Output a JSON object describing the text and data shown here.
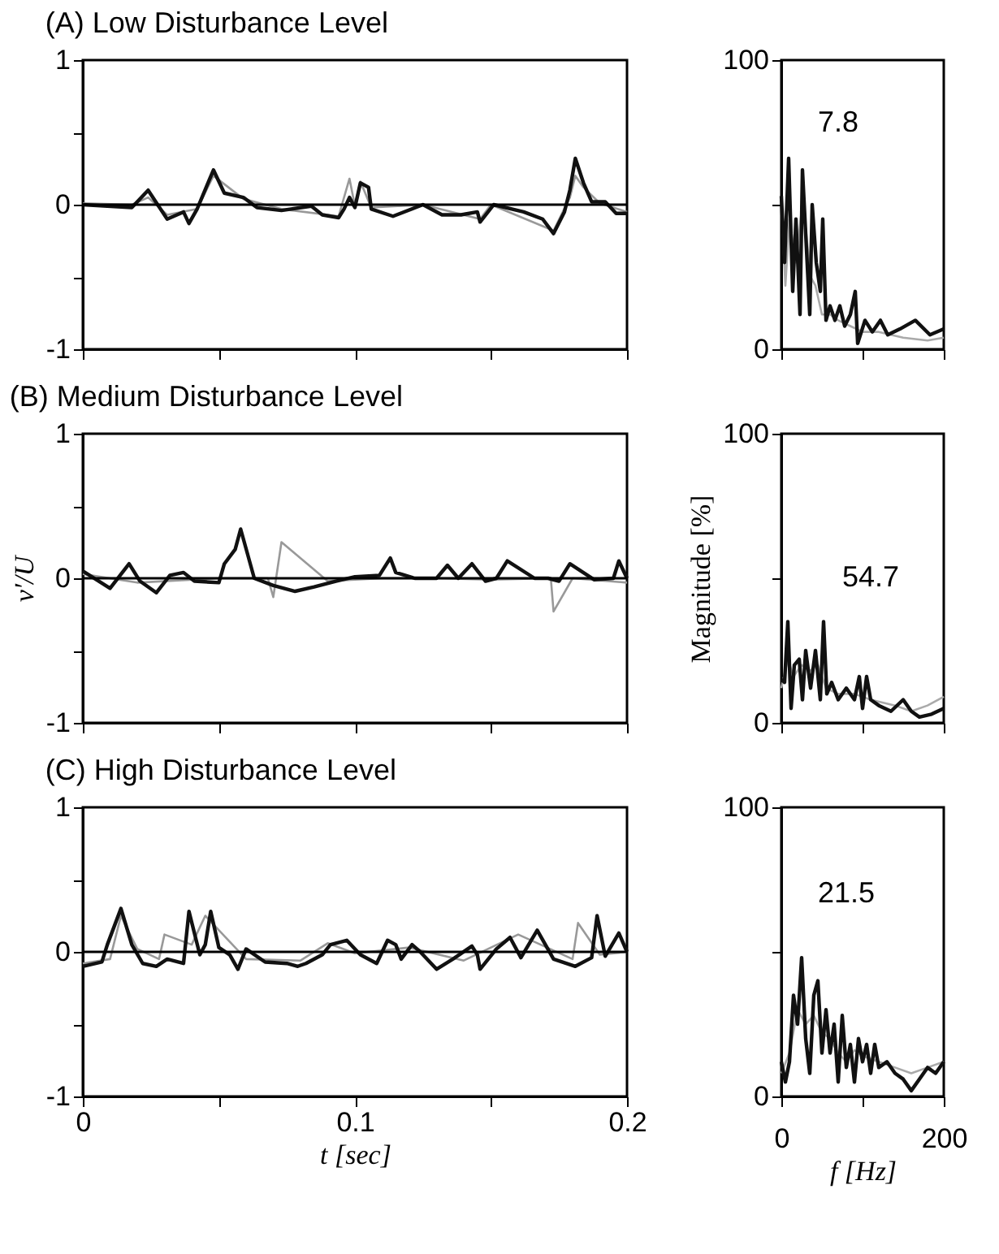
{
  "chart_data": [
    {
      "type": "line",
      "title": "(A) Low Disturbance Level",
      "xlim": [
        0,
        0.2
      ],
      "ylim": [
        -1,
        1
      ],
      "xticks": [
        0,
        {
          "value": 0.05,
          "label": null
        },
        0.1,
        {
          "value": 0.15,
          "label": null
        },
        0.2
      ],
      "yticks": [
        -1,
        {
          "value": -0.5,
          "label": null
        },
        0,
        {
          "value": 0.5,
          "label": null
        },
        1
      ],
      "tick_labels": "y",
      "ref_lines": [
        {
          "axis": "y",
          "value": 0
        }
      ],
      "series": [
        {
          "color": "#999999",
          "x": [
            0,
            0.018,
            0.024,
            0.031,
            0.042,
            0.048,
            0.059,
            0.073,
            0.094,
            0.098,
            0.1,
            0.102,
            0.106,
            0.125,
            0.146,
            0.15,
            0.173,
            0.179,
            0.181,
            0.184,
            0.19,
            0.2
          ],
          "values": [
            0.01,
            0,
            0.05,
            -0.07,
            -0.03,
            0.2,
            0.04,
            -0.03,
            -0.08,
            0.18,
            -0.01,
            0.16,
            -0.02,
            0,
            -0.1,
            0,
            -0.18,
            0.05,
            0.2,
            0.12,
            0.01,
            -0.05
          ]
        },
        {
          "color": "#111111",
          "x": [
            0,
            0.018,
            0.024,
            0.031,
            0.037,
            0.039,
            0.042,
            0.048,
            0.052,
            0.059,
            0.064,
            0.073,
            0.084,
            0.088,
            0.094,
            0.096,
            0.098,
            0.1,
            0.102,
            0.105,
            0.106,
            0.114,
            0.125,
            0.132,
            0.139,
            0.145,
            0.146,
            0.151,
            0.162,
            0.169,
            0.173,
            0.177,
            0.179,
            0.181,
            0.184,
            0.187,
            0.192,
            0.196,
            0.2
          ],
          "values": [
            0,
            -0.02,
            0.1,
            -0.1,
            -0.05,
            -0.13,
            -0.03,
            0.24,
            0.08,
            0.05,
            -0.02,
            -0.04,
            -0.01,
            -0.07,
            -0.09,
            -0.03,
            0.05,
            -0.02,
            0.15,
            0.12,
            -0.03,
            -0.08,
            0,
            -0.07,
            -0.07,
            -0.05,
            -0.12,
            0,
            -0.05,
            -0.1,
            -0.2,
            -0.05,
            0.1,
            0.32,
            0.15,
            0.02,
            0.02,
            -0.06,
            -0.06
          ]
        }
      ]
    },
    {
      "type": "line",
      "title": "(B) Medium Disturbance Level",
      "ylabel": "v′/U",
      "xlim": [
        0,
        0.2
      ],
      "ylim": [
        -1,
        1
      ],
      "xticks": [
        0,
        {
          "value": 0.05,
          "label": null
        },
        0.1,
        {
          "value": 0.15,
          "label": null
        },
        0.2
      ],
      "yticks": [
        -1,
        {
          "value": -0.5,
          "label": null
        },
        0,
        {
          "value": 0.5,
          "label": null
        },
        1
      ],
      "tick_labels": "y",
      "ref_lines": [
        {
          "axis": "y",
          "value": 0
        }
      ],
      "series": [
        {
          "color": "#999999",
          "x": [
            0,
            0.02,
            0.05,
            0.068,
            0.07,
            0.073,
            0.09,
            0.11,
            0.13,
            0.15,
            0.172,
            0.173,
            0.18,
            0.2
          ],
          "values": [
            0.03,
            -0.03,
            0,
            0,
            -0.13,
            0.25,
            -0.02,
            0,
            0,
            -0.01,
            0,
            -0.23,
            0,
            -0.03
          ]
        },
        {
          "color": "#111111",
          "x": [
            0,
            0.01,
            0.017,
            0.021,
            0.027,
            0.032,
            0.037,
            0.041,
            0.05,
            0.052,
            0.056,
            0.058,
            0.063,
            0.07,
            0.078,
            0.085,
            0.093,
            0.1,
            0.109,
            0.113,
            0.115,
            0.122,
            0.13,
            0.134,
            0.138,
            0.143,
            0.148,
            0.152,
            0.156,
            0.166,
            0.171,
            0.175,
            0.179,
            0.188,
            0.195,
            0.197,
            0.2
          ],
          "values": [
            0.05,
            -0.07,
            0.1,
            -0.02,
            -0.1,
            0.02,
            0.04,
            -0.02,
            -0.03,
            0.1,
            0.2,
            0.34,
            0,
            -0.05,
            -0.09,
            -0.06,
            -0.02,
            0.01,
            0.02,
            0.14,
            0.04,
            0,
            0,
            0.09,
            0,
            0.1,
            -0.02,
            0,
            0.12,
            0,
            0,
            -0.02,
            0.1,
            -0.01,
            0,
            0.12,
            0
          ]
        }
      ]
    },
    {
      "type": "line",
      "title": "(C) High Disturbance Level",
      "xlabel": "t  [sec]",
      "xlim": [
        0,
        0.2
      ],
      "ylim": [
        -1,
        1
      ],
      "xticks": [
        0,
        {
          "value": 0.05,
          "label": null
        },
        0.1,
        {
          "value": 0.15,
          "label": null
        },
        0.2
      ],
      "yticks": [
        -1,
        {
          "value": -0.5,
          "label": null
        },
        0,
        {
          "value": 0.5,
          "label": null
        },
        1
      ],
      "ref_lines": [
        {
          "axis": "y",
          "value": 0
        }
      ],
      "series": [
        {
          "color": "#999999",
          "x": [
            0,
            0.01,
            0.014,
            0.02,
            0.028,
            0.03,
            0.04,
            0.045,
            0.06,
            0.08,
            0.09,
            0.1,
            0.12,
            0.14,
            0.16,
            0.18,
            0.182,
            0.19,
            0.2
          ],
          "values": [
            -0.08,
            -0.05,
            0.25,
            0.02,
            -0.05,
            0.12,
            0.05,
            0.25,
            -0.05,
            -0.06,
            0.06,
            -0.01,
            0.03,
            -0.06,
            0.12,
            -0.05,
            0.2,
            -0.02,
            0
          ]
        },
        {
          "color": "#111111",
          "x": [
            0,
            0.007,
            0.009,
            0.014,
            0.018,
            0.022,
            0.027,
            0.031,
            0.037,
            0.039,
            0.043,
            0.045,
            0.047,
            0.05,
            0.054,
            0.057,
            0.06,
            0.067,
            0.075,
            0.079,
            0.082,
            0.088,
            0.091,
            0.097,
            0.102,
            0.108,
            0.112,
            0.115,
            0.117,
            0.121,
            0.124,
            0.13,
            0.136,
            0.143,
            0.145,
            0.146,
            0.152,
            0.157,
            0.161,
            0.167,
            0.173,
            0.181,
            0.187,
            0.189,
            0.192,
            0.197,
            0.2
          ],
          "values": [
            -0.1,
            -0.07,
            0.05,
            0.3,
            0.05,
            -0.08,
            -0.1,
            -0.05,
            -0.08,
            0.28,
            -0.02,
            0.05,
            0.28,
            0.03,
            -0.02,
            -0.12,
            0.02,
            -0.07,
            -0.08,
            -0.1,
            -0.08,
            -0.02,
            0.05,
            0.08,
            -0.02,
            -0.08,
            0.08,
            0.05,
            -0.05,
            0.05,
            0,
            -0.12,
            -0.05,
            0.04,
            -0.02,
            -0.12,
            0.02,
            0.1,
            -0.04,
            0.15,
            -0.05,
            -0.1,
            -0.04,
            0.25,
            -0.03,
            0.13,
            0
          ]
        }
      ]
    },
    {
      "type": "line",
      "xlim": [
        0,
        200
      ],
      "ylim": [
        0,
        100
      ],
      "xticks": [
        0,
        {
          "value": 100,
          "label": null
        },
        200
      ],
      "yticks": [
        0,
        {
          "value": 50,
          "label": null
        },
        100
      ],
      "tick_labels": "y",
      "annotations": [
        "7.8"
      ],
      "series": [
        {
          "color": "#aaaaaa",
          "x": [
            0,
            5,
            10,
            18,
            25,
            30,
            36,
            42,
            50,
            60,
            70,
            85,
            100,
            120,
            150,
            180,
            200
          ],
          "values": [
            52,
            22,
            45,
            30,
            48,
            42,
            25,
            22,
            12,
            12,
            10,
            8,
            6,
            6,
            4,
            3,
            4
          ]
        },
        {
          "color": "#111111",
          "x": [
            0,
            4,
            9,
            14,
            18,
            23,
            26,
            30,
            35,
            38,
            43,
            48,
            51,
            55,
            60,
            66,
            72,
            78,
            85,
            91,
            94,
            103,
            112,
            122,
            131,
            146,
            165,
            183,
            200
          ],
          "values": [
            53,
            30,
            66,
            20,
            45,
            12,
            62,
            40,
            12,
            50,
            30,
            20,
            45,
            10,
            15,
            10,
            15,
            8,
            12,
            20,
            2,
            10,
            6,
            10,
            5,
            7,
            10,
            5,
            7
          ]
        }
      ]
    },
    {
      "type": "line",
      "ylabel": "Magnitude [%]",
      "xlim": [
        0,
        200
      ],
      "ylim": [
        0,
        100
      ],
      "xticks": [
        0,
        {
          "value": 100,
          "label": null
        },
        200
      ],
      "yticks": [
        0,
        {
          "value": 50,
          "label": null
        },
        100
      ],
      "tick_labels": "y",
      "annotations": [
        "54.7"
      ],
      "series": [
        {
          "color": "#aaaaaa",
          "x": [
            0,
            8,
            15,
            25,
            35,
            45,
            55,
            70,
            90,
            110,
            140,
            160,
            180,
            200
          ],
          "values": [
            12,
            22,
            16,
            20,
            18,
            20,
            12,
            10,
            10,
            8,
            6,
            4,
            6,
            9
          ]
        },
        {
          "color": "#111111",
          "x": [
            0,
            4,
            8,
            12,
            16,
            22,
            26,
            30,
            36,
            42,
            48,
            52,
            56,
            62,
            70,
            80,
            90,
            96,
            100,
            105,
            110,
            120,
            135,
            150,
            160,
            170,
            185,
            200
          ],
          "values": [
            15,
            14,
            35,
            5,
            20,
            22,
            8,
            25,
            12,
            25,
            8,
            35,
            10,
            14,
            8,
            12,
            8,
            16,
            5,
            16,
            8,
            6,
            4,
            8,
            4,
            2,
            3,
            5
          ]
        }
      ]
    },
    {
      "type": "line",
      "xlabel": "f [Hz]",
      "xlim": [
        0,
        200
      ],
      "ylim": [
        0,
        100
      ],
      "xticks": [
        0,
        {
          "value": 100,
          "label": null
        },
        200
      ],
      "yticks": [
        0,
        {
          "value": 50,
          "label": null
        },
        100
      ],
      "annotations": [
        "21.5"
      ],
      "series": [
        {
          "color": "#aaaaaa",
          "x": [
            0,
            10,
            20,
            30,
            40,
            50,
            60,
            70,
            80,
            90,
            100,
            120,
            140,
            160,
            180,
            200
          ],
          "values": [
            8,
            15,
            30,
            25,
            28,
            22,
            20,
            15,
            12,
            16,
            14,
            12,
            10,
            8,
            10,
            12
          ]
        },
        {
          "color": "#111111",
          "x": [
            0,
            5,
            10,
            15,
            20,
            25,
            30,
            35,
            40,
            45,
            50,
            55,
            60,
            65,
            70,
            75,
            80,
            85,
            90,
            95,
            100,
            105,
            110,
            115,
            120,
            130,
            140,
            150,
            160,
            170,
            180,
            190,
            200
          ],
          "values": [
            12,
            5,
            12,
            35,
            25,
            48,
            20,
            8,
            35,
            40,
            15,
            30,
            15,
            25,
            5,
            28,
            10,
            18,
            5,
            20,
            12,
            18,
            8,
            18,
            10,
            12,
            8,
            6,
            2,
            6,
            10,
            8,
            12
          ]
        }
      ]
    }
  ]
}
